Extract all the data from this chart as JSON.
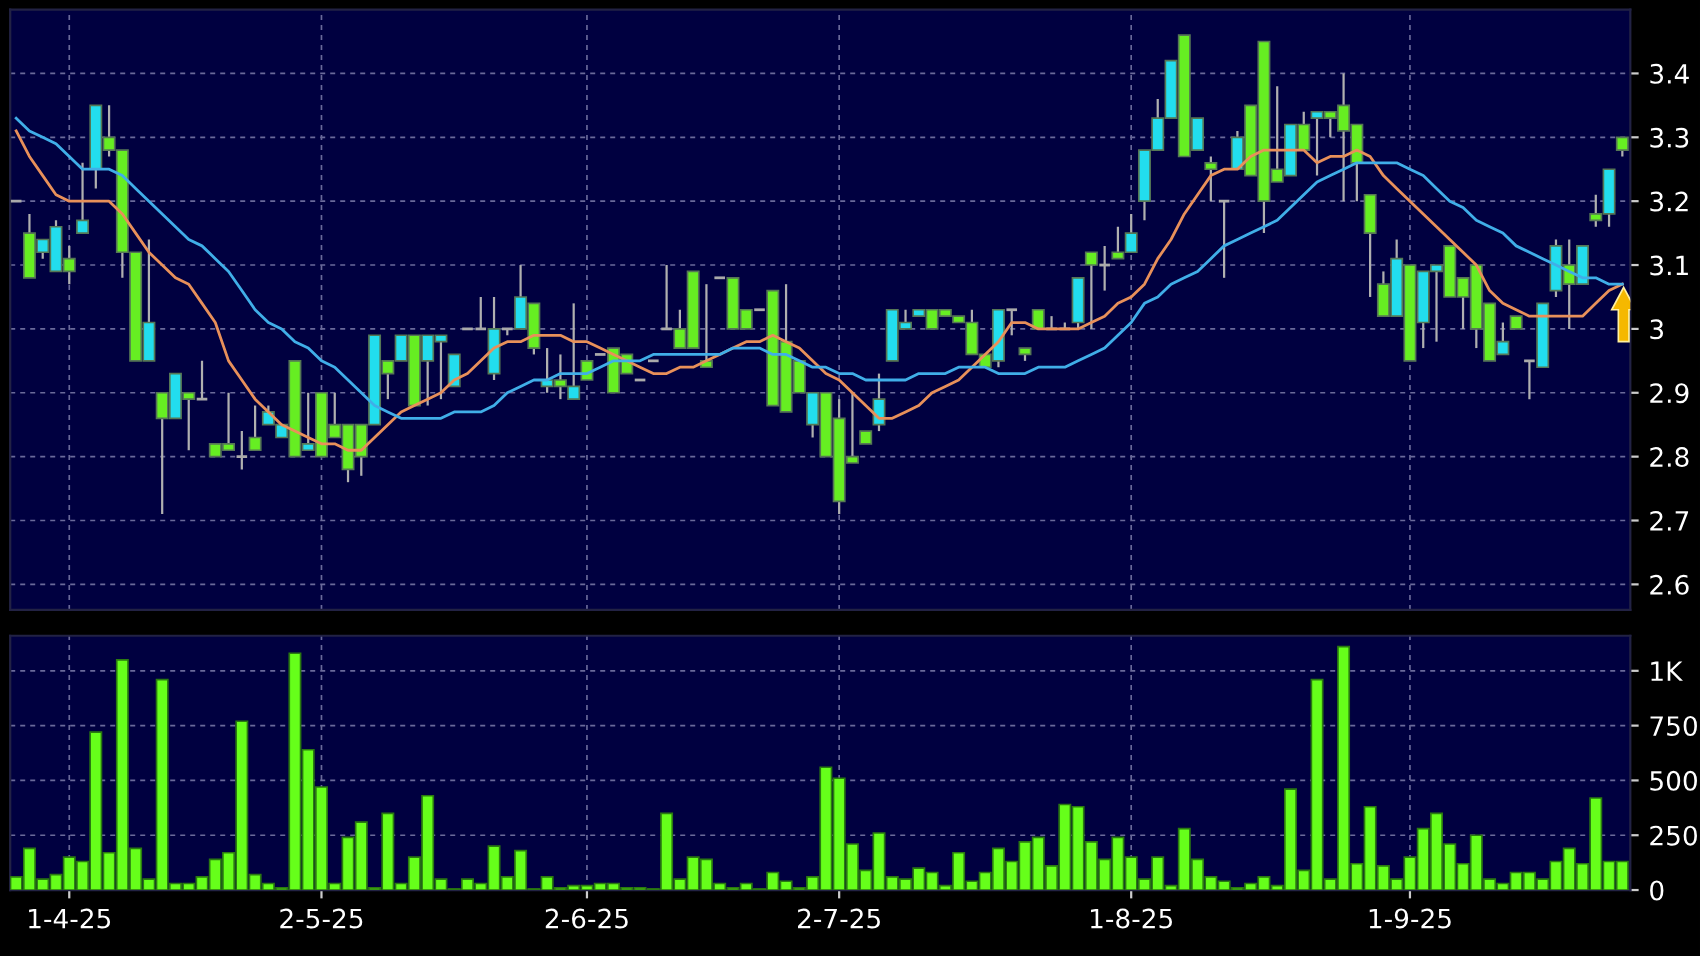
{
  "chart_data": [
    {
      "type": "candlestick",
      "categories": [
        null,
        null,
        null,
        null,
        null,
        null,
        null,
        null,
        null,
        null,
        null,
        null,
        null,
        null,
        null,
        null,
        null,
        null,
        null,
        null,
        null,
        null,
        null,
        null,
        null,
        null,
        null,
        null,
        null,
        null,
        null,
        null,
        null,
        null,
        null,
        null,
        null,
        null,
        null,
        null,
        null,
        null,
        null,
        null,
        null,
        null,
        null,
        null,
        null,
        null,
        null,
        null,
        null,
        null,
        null,
        null,
        null,
        null,
        null,
        null,
        null,
        null,
        null,
        null,
        null,
        null,
        null,
        null,
        null,
        null,
        null,
        null,
        null,
        null,
        null,
        null,
        null,
        null,
        null,
        null,
        null,
        null,
        null,
        null,
        null,
        null,
        null,
        null,
        null,
        null,
        null,
        null,
        null,
        null,
        null,
        null,
        null,
        null,
        null,
        null,
        null,
        null,
        null,
        null,
        null,
        null,
        null,
        null,
        null,
        null,
        null,
        null,
        null,
        null,
        null,
        null,
        null,
        null,
        null,
        null,
        null,
        null
      ],
      "ohlc": [
        [
          3.2,
          3.2,
          3.2,
          3.2
        ],
        [
          3.15,
          3.18,
          3.08,
          3.08
        ],
        [
          3.12,
          3.14,
          3.11,
          3.14
        ],
        [
          3.09,
          3.17,
          3.09,
          3.16
        ],
        [
          3.11,
          3.13,
          3.07,
          3.09
        ],
        [
          3.15,
          3.26,
          3.15,
          3.17
        ],
        [
          3.25,
          3.35,
          3.22,
          3.35
        ],
        [
          3.3,
          3.35,
          3.27,
          3.28
        ],
        [
          3.28,
          3.28,
          3.08,
          3.12
        ],
        [
          3.12,
          3.12,
          2.95,
          2.95
        ],
        [
          2.95,
          3.14,
          2.95,
          3.01
        ],
        [
          2.9,
          2.9,
          2.71,
          2.86
        ],
        [
          2.86,
          2.93,
          2.86,
          2.93
        ],
        [
          2.9,
          2.9,
          2.81,
          2.89
        ],
        [
          2.89,
          2.95,
          2.89,
          2.89
        ],
        [
          2.82,
          2.82,
          2.8,
          2.8
        ],
        [
          2.82,
          2.9,
          2.81,
          2.81
        ],
        [
          2.8,
          2.84,
          2.78,
          2.8
        ],
        [
          2.83,
          2.88,
          2.81,
          2.81
        ],
        [
          2.85,
          2.88,
          2.85,
          2.87
        ],
        [
          2.83,
          2.85,
          2.83,
          2.85
        ],
        [
          2.95,
          2.95,
          2.8,
          2.8
        ],
        [
          2.81,
          2.9,
          2.81,
          2.82
        ],
        [
          2.9,
          2.9,
          2.8,
          2.8
        ],
        [
          2.85,
          2.9,
          2.83,
          2.83
        ],
        [
          2.85,
          2.85,
          2.76,
          2.78
        ],
        [
          2.85,
          2.85,
          2.77,
          2.8
        ],
        [
          2.85,
          2.99,
          2.85,
          2.99
        ],
        [
          2.95,
          2.95,
          2.89,
          2.93
        ],
        [
          2.95,
          2.99,
          2.95,
          2.99
        ],
        [
          2.99,
          2.99,
          2.88,
          2.88
        ],
        [
          2.95,
          2.99,
          2.88,
          2.99
        ],
        [
          2.98,
          2.99,
          2.89,
          2.99
        ],
        [
          2.91,
          2.96,
          2.91,
          2.96
        ],
        [
          3.0,
          3.0,
          3.0,
          3.0
        ],
        [
          3.0,
          3.05,
          3.0,
          3.0
        ],
        [
          2.93,
          3.05,
          2.92,
          3.0
        ],
        [
          3.0,
          3.0,
          2.99,
          3.0
        ],
        [
          3.0,
          3.1,
          3.0,
          3.05
        ],
        [
          3.04,
          3.04,
          2.96,
          2.97
        ],
        [
          2.91,
          2.97,
          2.9,
          2.92
        ],
        [
          2.92,
          2.96,
          2.89,
          2.91
        ],
        [
          2.89,
          3.04,
          2.89,
          2.91
        ],
        [
          2.95,
          2.95,
          2.92,
          2.92
        ],
        [
          2.96,
          2.96,
          2.96,
          2.96
        ],
        [
          2.97,
          2.97,
          2.9,
          2.9
        ],
        [
          2.96,
          2.96,
          2.93,
          2.93
        ],
        [
          2.92,
          2.92,
          2.92,
          2.92
        ],
        [
          2.95,
          2.95,
          2.95,
          2.95
        ],
        [
          3.0,
          3.1,
          3.0,
          3.0
        ],
        [
          3.0,
          3.03,
          2.97,
          2.97
        ],
        [
          3.09,
          3.09,
          2.97,
          2.97
        ],
        [
          2.95,
          3.07,
          2.94,
          2.94
        ],
        [
          3.08,
          3.08,
          3.08,
          3.08
        ],
        [
          3.08,
          3.08,
          3.0,
          3.0
        ],
        [
          3.03,
          3.03,
          3.0,
          3.0
        ],
        [
          3.03,
          3.03,
          3.03,
          3.03
        ],
        [
          3.06,
          3.06,
          2.88,
          2.88
        ],
        [
          2.98,
          3.07,
          2.87,
          2.87
        ],
        [
          2.95,
          2.95,
          2.9,
          2.9
        ],
        [
          2.85,
          2.9,
          2.83,
          2.9
        ],
        [
          2.9,
          2.9,
          2.8,
          2.8
        ],
        [
          2.86,
          2.89,
          2.71,
          2.73
        ],
        [
          2.8,
          2.9,
          2.79,
          2.79
        ],
        [
          2.84,
          2.84,
          2.82,
          2.82
        ],
        [
          2.85,
          2.93,
          2.84,
          2.89
        ],
        [
          2.95,
          3.03,
          2.95,
          3.03
        ],
        [
          3.0,
          3.03,
          3.0,
          3.01
        ],
        [
          3.02,
          3.03,
          3.02,
          3.03
        ],
        [
          3.03,
          3.03,
          3.0,
          3.0
        ],
        [
          3.03,
          3.03,
          3.02,
          3.02
        ],
        [
          3.02,
          3.02,
          3.01,
          3.01
        ],
        [
          3.01,
          3.03,
          2.96,
          2.96
        ],
        [
          2.96,
          2.96,
          2.94,
          2.94
        ],
        [
          2.95,
          3.03,
          2.94,
          3.03
        ],
        [
          3.03,
          3.03,
          2.99,
          3.03
        ],
        [
          2.97,
          2.97,
          2.95,
          2.96
        ],
        [
          3.03,
          3.03,
          3.0,
          3.0
        ],
        [
          3.0,
          3.02,
          3.0,
          3.0
        ],
        [
          3.0,
          3.01,
          3.0,
          3.0
        ],
        [
          3.01,
          3.08,
          3.0,
          3.08
        ],
        [
          3.12,
          3.12,
          3.0,
          3.1
        ],
        [
          3.1,
          3.13,
          3.06,
          3.1
        ],
        [
          3.12,
          3.16,
          3.11,
          3.11
        ],
        [
          3.12,
          3.18,
          3.12,
          3.15
        ],
        [
          3.2,
          3.28,
          3.17,
          3.28
        ],
        [
          3.28,
          3.36,
          3.28,
          3.33
        ],
        [
          3.33,
          3.42,
          3.33,
          3.42
        ],
        [
          3.46,
          3.46,
          3.27,
          3.27
        ],
        [
          3.28,
          3.33,
          3.28,
          3.33
        ],
        [
          3.26,
          3.27,
          3.2,
          3.25
        ],
        [
          3.2,
          3.2,
          3.08,
          3.2
        ],
        [
          3.25,
          3.31,
          3.25,
          3.3
        ],
        [
          3.35,
          3.35,
          3.24,
          3.24
        ],
        [
          3.45,
          3.45,
          3.15,
          3.2
        ],
        [
          3.25,
          3.38,
          3.23,
          3.23
        ],
        [
          3.24,
          3.32,
          3.24,
          3.32
        ],
        [
          3.32,
          3.34,
          3.28,
          3.28
        ],
        [
          3.33,
          3.34,
          3.24,
          3.34
        ],
        [
          3.34,
          3.34,
          3.3,
          3.33
        ],
        [
          3.35,
          3.4,
          3.2,
          3.31
        ],
        [
          3.32,
          3.32,
          3.2,
          3.26
        ],
        [
          3.21,
          3.21,
          3.05,
          3.15
        ],
        [
          3.07,
          3.09,
          3.02,
          3.02
        ],
        [
          3.02,
          3.14,
          3.02,
          3.11
        ],
        [
          3.1,
          3.1,
          2.95,
          2.95
        ],
        [
          3.01,
          3.09,
          2.97,
          3.09
        ],
        [
          3.09,
          3.1,
          2.98,
          3.1
        ],
        [
          3.13,
          3.13,
          3.05,
          3.05
        ],
        [
          3.08,
          3.08,
          3.0,
          3.05
        ],
        [
          3.1,
          3.1,
          2.97,
          3.0
        ],
        [
          3.04,
          3.04,
          2.95,
          2.95
        ],
        [
          2.96,
          3.01,
          2.96,
          2.98
        ],
        [
          3.02,
          3.02,
          3.0,
          3.0
        ],
        [
          2.95,
          2.95,
          2.89,
          2.95
        ],
        [
          2.94,
          3.04,
          2.94,
          3.04
        ],
        [
          3.06,
          3.14,
          3.05,
          3.13
        ],
        [
          3.1,
          3.14,
          3.0,
          3.07
        ],
        [
          3.07,
          3.13,
          3.07,
          3.13
        ],
        [
          3.18,
          3.21,
          3.16,
          3.17
        ],
        [
          3.18,
          3.25,
          3.16,
          3.25
        ],
        [
          3.3,
          3.3,
          3.27,
          3.28
        ]
      ],
      "colors": [
        "#aaaaaa",
        "#66ee22",
        "#22ddee",
        "#22ddee",
        "#66ee22",
        "#22ddee",
        "#22ddee",
        "#66ee22",
        "#66ee22",
        "#66ee22",
        "#22ddee",
        "#66ee22",
        "#22ddee",
        "#66ee22",
        "#aaaaaa",
        "#66ee22",
        "#66ee22",
        "#aaaaaa",
        "#66ee22",
        "#22ddee",
        "#22ddee",
        "#66ee22",
        "#22ddee",
        "#66ee22",
        "#66ee22",
        "#66ee22",
        "#66ee22",
        "#22ddee",
        "#66ee22",
        "#22ddee",
        "#66ee22",
        "#22ddee",
        "#22ddee",
        "#22ddee",
        "#aaaaaa",
        "#aaaaaa",
        "#22ddee",
        "#aaaaaa",
        "#22ddee",
        "#66ee22",
        "#22ddee",
        "#66ee22",
        "#22ddee",
        "#66ee22",
        "#aaaaaa",
        "#66ee22",
        "#66ee22",
        "#aaaaaa",
        "#aaaaaa",
        "#aaaaaa",
        "#66ee22",
        "#66ee22",
        "#66ee22",
        "#aaaaaa",
        "#66ee22",
        "#66ee22",
        "#aaaaaa",
        "#66ee22",
        "#66ee22",
        "#66ee22",
        "#22ddee",
        "#66ee22",
        "#66ee22",
        "#66ee22",
        "#66ee22",
        "#22ddee",
        "#22ddee",
        "#22ddee",
        "#22ddee",
        "#66ee22",
        "#66ee22",
        "#66ee22",
        "#66ee22",
        "#66ee22",
        "#22ddee",
        "#aaaaaa",
        "#66ee22",
        "#66ee22",
        "#aaaaaa",
        "#aaaaaa",
        "#22ddee",
        "#66ee22",
        "#aaaaaa",
        "#66ee22",
        "#22ddee",
        "#22ddee",
        "#22ddee",
        "#22ddee",
        "#66ee22",
        "#22ddee",
        "#66ee22",
        "#aaaaaa",
        "#22ddee",
        "#66ee22",
        "#66ee22",
        "#66ee22",
        "#22ddee",
        "#66ee22",
        "#22ddee",
        "#66ee22",
        "#66ee22",
        "#66ee22",
        "#66ee22",
        "#66ee22",
        "#22ddee",
        "#66ee22",
        "#22ddee",
        "#22ddee",
        "#66ee22",
        "#66ee22",
        "#66ee22",
        "#66ee22",
        "#22ddee",
        "#66ee22",
        "#aaaaaa",
        "#22ddee",
        "#22ddee",
        "#66ee22",
        "#22ddee",
        "#66ee22",
        "#22ddee",
        "#66ee22"
      ],
      "series": [
        {
          "type": "line",
          "color": "#e8905a",
          "values": [
            3.31,
            3.27,
            3.24,
            3.21,
            3.2,
            3.2,
            3.2,
            3.2,
            3.18,
            3.15,
            3.12,
            3.1,
            3.08,
            3.07,
            3.04,
            3.01,
            2.95,
            2.92,
            2.89,
            2.87,
            2.85,
            2.84,
            2.83,
            2.82,
            2.82,
            2.81,
            2.81,
            2.83,
            2.85,
            2.87,
            2.88,
            2.89,
            2.9,
            2.92,
            2.93,
            2.95,
            2.97,
            2.98,
            2.98,
            2.99,
            2.99,
            2.99,
            2.98,
            2.98,
            2.97,
            2.96,
            2.95,
            2.94,
            2.93,
            2.93,
            2.94,
            2.94,
            2.95,
            2.96,
            2.97,
            2.98,
            2.98,
            2.99,
            2.98,
            2.97,
            2.95,
            2.93,
            2.92,
            2.9,
            2.88,
            2.86,
            2.86,
            2.87,
            2.88,
            2.9,
            2.91,
            2.92,
            2.94,
            2.96,
            2.98,
            3.01,
            3.01,
            3.0,
            3.0,
            3.0,
            3.0,
            3.01,
            3.02,
            3.04,
            3.05,
            3.07,
            3.11,
            3.14,
            3.18,
            3.21,
            3.24,
            3.25,
            3.25,
            3.27,
            3.28,
            3.28,
            3.28,
            3.28,
            3.26,
            3.27,
            3.27,
            3.28,
            3.27,
            3.24,
            3.22,
            3.2,
            3.18,
            3.16,
            3.14,
            3.12,
            3.1,
            3.06,
            3.04,
            3.03,
            3.02,
            3.02,
            3.02,
            3.02,
            3.02,
            3.04,
            3.06,
            3.07
          ]
        },
        {
          "type": "line",
          "color": "#40aee8",
          "values": [
            3.33,
            3.31,
            3.3,
            3.29,
            3.27,
            3.25,
            3.25,
            3.25,
            3.24,
            3.22,
            3.2,
            3.18,
            3.16,
            3.14,
            3.13,
            3.11,
            3.09,
            3.06,
            3.03,
            3.01,
            3.0,
            2.98,
            2.97,
            2.95,
            2.94,
            2.92,
            2.9,
            2.88,
            2.87,
            2.86,
            2.86,
            2.86,
            2.86,
            2.87,
            2.87,
            2.87,
            2.88,
            2.9,
            2.91,
            2.92,
            2.92,
            2.93,
            2.93,
            2.93,
            2.94,
            2.95,
            2.95,
            2.95,
            2.96,
            2.96,
            2.96,
            2.96,
            2.96,
            2.96,
            2.97,
            2.97,
            2.97,
            2.96,
            2.96,
            2.95,
            2.94,
            2.94,
            2.93,
            2.93,
            2.92,
            2.92,
            2.92,
            2.92,
            2.93,
            2.93,
            2.93,
            2.94,
            2.94,
            2.94,
            2.93,
            2.93,
            2.93,
            2.94,
            2.94,
            2.94,
            2.95,
            2.96,
            2.97,
            2.99,
            3.01,
            3.04,
            3.05,
            3.07,
            3.08,
            3.09,
            3.11,
            3.13,
            3.14,
            3.15,
            3.16,
            3.17,
            3.19,
            3.21,
            3.23,
            3.24,
            3.25,
            3.26,
            3.26,
            3.26,
            3.26,
            3.25,
            3.24,
            3.22,
            3.2,
            3.19,
            3.17,
            3.16,
            3.15,
            3.13,
            3.12,
            3.11,
            3.1,
            3.09,
            3.08,
            3.08,
            3.07,
            3.07
          ]
        }
      ],
      "ylim": [
        2.56,
        3.5
      ],
      "yticks": [
        2.6,
        2.7,
        2.8,
        2.9,
        3,
        3.1,
        3.2,
        3.3,
        3.4
      ],
      "grid": true,
      "tick_labels": "y"
    },
    {
      "type": "bar",
      "categories": [
        null,
        null,
        null,
        null,
        "1-4-25",
        null,
        null,
        null,
        null,
        null,
        null,
        null,
        null,
        null,
        null,
        null,
        null,
        null,
        null,
        null,
        null,
        null,
        null,
        "2-5-25",
        null,
        null,
        null,
        null,
        null,
        null,
        null,
        null,
        null,
        null,
        null,
        null,
        null,
        null,
        null,
        null,
        null,
        null,
        null,
        "2-6-25",
        null,
        null,
        null,
        null,
        null,
        null,
        null,
        null,
        null,
        null,
        null,
        null,
        null,
        null,
        null,
        null,
        null,
        null,
        "2-7-25",
        null,
        null,
        null,
        null,
        null,
        null,
        null,
        null,
        null,
        null,
        null,
        null,
        null,
        null,
        null,
        null,
        null,
        null,
        null,
        null,
        null,
        "1-8-25",
        null,
        null,
        null,
        null,
        null,
        null,
        null,
        null,
        null,
        null,
        null,
        null,
        null,
        null,
        null,
        null,
        null,
        null,
        null,
        null,
        "1-9-25",
        null,
        null,
        null,
        null,
        null,
        null,
        null,
        null,
        null,
        null,
        null,
        null,
        null,
        null,
        null,
        null
      ],
      "values": [
        60,
        190,
        50,
        70,
        150,
        130,
        720,
        170,
        1050,
        190,
        50,
        960,
        30,
        30,
        60,
        140,
        170,
        770,
        70,
        30,
        10,
        1080,
        640,
        470,
        30,
        240,
        310,
        10,
        350,
        30,
        150,
        430,
        50,
        5,
        50,
        30,
        200,
        60,
        180,
        5,
        60,
        10,
        20,
        20,
        30,
        30,
        10,
        10,
        5,
        350,
        50,
        150,
        140,
        30,
        10,
        30,
        5,
        80,
        40,
        10,
        60,
        560,
        510,
        210,
        90,
        260,
        60,
        50,
        100,
        80,
        20,
        170,
        40,
        80,
        190,
        130,
        220,
        240,
        110,
        390,
        380,
        220,
        140,
        240,
        150,
        50,
        150,
        20,
        280,
        140,
        60,
        40,
        10,
        30,
        60,
        20,
        460,
        90,
        960,
        50,
        1110,
        120,
        380,
        110,
        50,
        150,
        280,
        350,
        210,
        120,
        250,
        50,
        30,
        80,
        80,
        50,
        130,
        190,
        120,
        420,
        130,
        130
      ],
      "color": "#66ff1a",
      "ylim": [
        0,
        1160
      ],
      "yticks": [
        0,
        250,
        500,
        750,
        {
          "value": 1000,
          "label": "1K"
        }
      ],
      "grid": true
    }
  ]
}
